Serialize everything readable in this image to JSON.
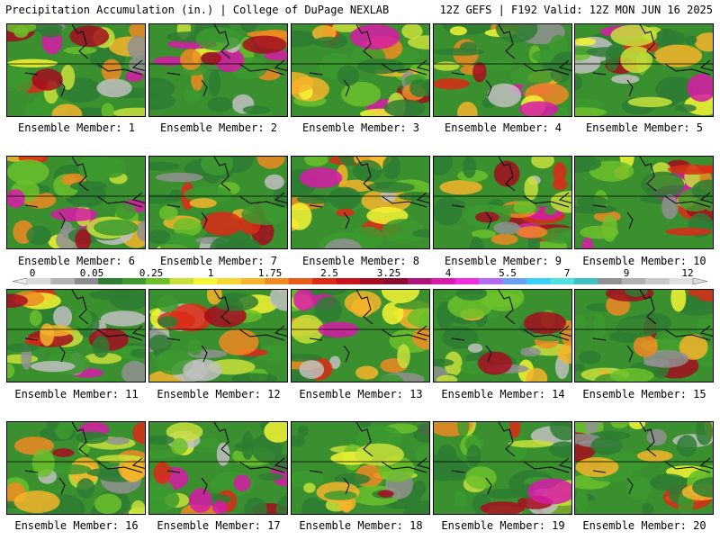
{
  "header": {
    "left": "Precipitation Accumulation (in.) | College of DuPage NEXLAB",
    "right": "12Z GEFS | F192 Valid: 12Z MON JUN 16 2025"
  },
  "colorbar": {
    "tick_labels": [
      "0",
      "0.05",
      "0.25",
      "1",
      "1.75",
      "2.5",
      "3.25",
      "4",
      "5.5",
      "7",
      "9",
      "12"
    ],
    "colors": [
      "#d9d9d9",
      "#b3b3b3",
      "#8c8c8c",
      "#2e7d32",
      "#3c9a2e",
      "#6cbf2a",
      "#c8e03a",
      "#f5f533",
      "#f8d530",
      "#f6b42a",
      "#f08a22",
      "#e85a1a",
      "#dd2a16",
      "#c8141c",
      "#a60d20",
      "#880c30",
      "#b0127c",
      "#d81aa8",
      "#f02ee0",
      "#b46cf0",
      "#6aa0f5",
      "#3ad0f5",
      "#50e0e0",
      "#40c0c0",
      "#909090",
      "#b0b0b0",
      "#c8c8c8",
      "#e0e0e0"
    ]
  },
  "panels": [
    {
      "label": "Ensemble Member: 1"
    },
    {
      "label": "Ensemble Member: 2"
    },
    {
      "label": "Ensemble Member: 3"
    },
    {
      "label": "Ensemble Member: 4"
    },
    {
      "label": "Ensemble Member: 5"
    },
    {
      "label": "Ensemble Member: 6"
    },
    {
      "label": "Ensemble Member: 7"
    },
    {
      "label": "Ensemble Member: 8"
    },
    {
      "label": "Ensemble Member: 9"
    },
    {
      "label": "Ensemble Member: 10"
    },
    {
      "label": "Ensemble Member: 11"
    },
    {
      "label": "Ensemble Member: 12"
    },
    {
      "label": "Ensemble Member: 13"
    },
    {
      "label": "Ensemble Member: 14"
    },
    {
      "label": "Ensemble Member: 15"
    },
    {
      "label": "Ensemble Member: 16"
    },
    {
      "label": "Ensemble Member: 17"
    },
    {
      "label": "Ensemble Member: 18"
    },
    {
      "label": "Ensemble Member: 19"
    },
    {
      "label": "Ensemble Member: 20"
    }
  ]
}
